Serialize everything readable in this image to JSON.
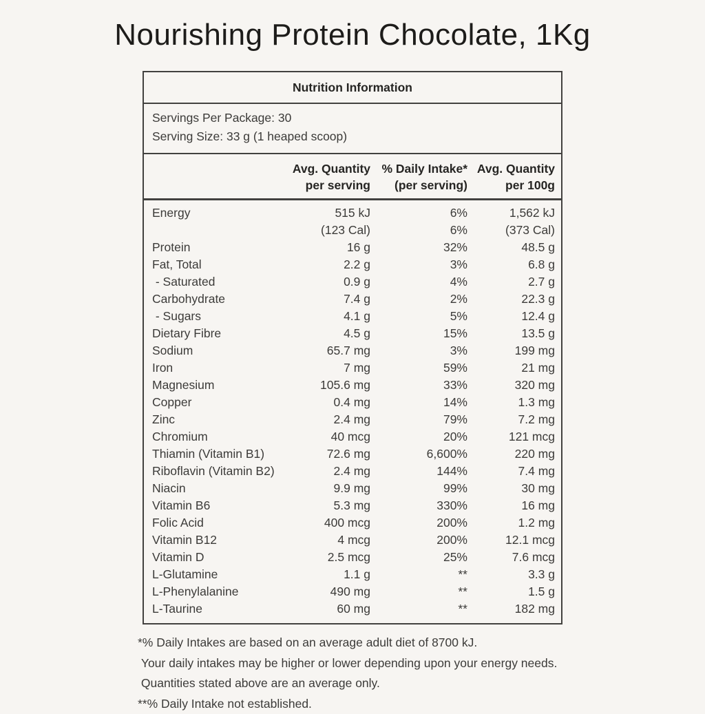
{
  "page": {
    "title": "Nourishing Protein Chocolate, 1Kg",
    "background_color": "#f7f5f2",
    "text_color": "#3c3b39",
    "border_color": "#42413f"
  },
  "table": {
    "title": "Nutrition Information",
    "servings_lines": [
      "Servings Per Package: 30",
      "Serving Size: 33 g (1 heaped scoop)"
    ],
    "column_headers": [
      "",
      "Avg. Quantity\nper serving",
      "% Daily Intake*\n(per serving)",
      "Avg. Quantity\nper 100g"
    ],
    "rows": [
      [
        "Energy",
        "515 kJ",
        "6%",
        "1,562 kJ"
      ],
      [
        "",
        "(123 Cal)",
        "6%",
        "(373 Cal)"
      ],
      [
        "Protein",
        "16 g",
        "32%",
        "48.5 g"
      ],
      [
        "Fat, Total",
        "2.2 g",
        "3%",
        "6.8 g"
      ],
      [
        " - Saturated",
        "0.9 g",
        "4%",
        "2.7 g"
      ],
      [
        "Carbohydrate",
        "7.4 g",
        "2%",
        "22.3 g"
      ],
      [
        " - Sugars",
        "4.1 g",
        "5%",
        "12.4 g"
      ],
      [
        "Dietary Fibre",
        "4.5 g",
        "15%",
        "13.5 g"
      ],
      [
        "Sodium",
        "65.7 mg",
        "3%",
        "199 mg"
      ],
      [
        "Iron",
        "7 mg",
        "59%",
        "21 mg"
      ],
      [
        "Magnesium",
        "105.6 mg",
        "33%",
        "320 mg"
      ],
      [
        "Copper",
        "0.4 mg",
        "14%",
        "1.3 mg"
      ],
      [
        "Zinc",
        "2.4 mg",
        "79%",
        "7.2 mg"
      ],
      [
        "Chromium",
        "40 mcg",
        "20%",
        "121 mcg"
      ],
      [
        "Thiamin (Vitamin B1)",
        "72.6 mg",
        "6,600%",
        "220 mg"
      ],
      [
        "Riboflavin (Vitamin B2)",
        "2.4 mg",
        "144%",
        "7.4 mg"
      ],
      [
        "Niacin",
        "9.9 mg",
        "99%",
        "30 mg"
      ],
      [
        "Vitamin B6",
        "5.3 mg",
        "330%",
        "16 mg"
      ],
      [
        "Folic Acid",
        "400 mcg",
        "200%",
        "1.2 mg"
      ],
      [
        "Vitamin B12",
        "4 mcg",
        "200%",
        "12.1 mcg"
      ],
      [
        "Vitamin D",
        "2.5 mcg",
        "25%",
        "7.6 mcg"
      ],
      [
        "L-Glutamine",
        "1.1 g",
        "**",
        "3.3 g"
      ],
      [
        "L-Phenylalanine",
        "490 mg",
        "**",
        "1.5 g"
      ],
      [
        "L-Taurine",
        "60 mg",
        "**",
        "182 mg"
      ]
    ]
  },
  "footnotes": [
    "*% Daily Intakes are based on an average adult diet of 8700 kJ.",
    " Your daily intakes may be higher or lower depending upon your energy needs.",
    " Quantities stated above are an average only.",
    "**% Daily Intake not established."
  ]
}
